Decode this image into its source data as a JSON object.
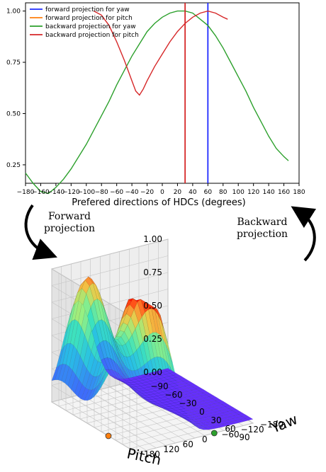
{
  "chart_data": [
    {
      "type": "line",
      "title": "",
      "xlabel": "Prefered directions of HDCs (degrees)",
      "ylabel": "",
      "xlim": [
        -180,
        180
      ],
      "ylim": [
        0.16,
        1.04
      ],
      "x_ticks": [
        -180,
        -160,
        -140,
        -120,
        -100,
        -80,
        -60,
        -40,
        -20,
        0,
        20,
        40,
        60,
        80,
        100,
        120,
        140,
        160,
        180
      ],
      "y_ticks": [
        0.25,
        0.5,
        0.75,
        1.0
      ],
      "y_tick_labels": [
        "0.25",
        "0.50",
        "0.75",
        "1.00"
      ],
      "grid": false,
      "legend_position": "top-left",
      "series": [
        {
          "name": "forward projection for yaw",
          "color": "#1f2bff",
          "style": "vertical",
          "x": 60,
          "y": [
            0.16,
            1.04
          ]
        },
        {
          "name": "forward projection for pitch",
          "color": "#ff7f0e",
          "style": "line",
          "x": [],
          "y": []
        },
        {
          "name": "backward projection for yaw",
          "color": "#2ca02c",
          "style": "line",
          "x": [
            -180,
            -170,
            -160,
            -150,
            -140,
            -130,
            -120,
            -110,
            -100,
            -90,
            -80,
            -70,
            -60,
            -50,
            -40,
            -30,
            -20,
            -10,
            0,
            10,
            20,
            30,
            40,
            50,
            60,
            70,
            80,
            90,
            100,
            110,
            120,
            130,
            140,
            150,
            160,
            166
          ],
          "y": [
            0.21,
            0.16,
            0.12,
            0.11,
            0.14,
            0.18,
            0.23,
            0.29,
            0.35,
            0.42,
            0.49,
            0.56,
            0.64,
            0.71,
            0.78,
            0.84,
            0.9,
            0.94,
            0.97,
            0.99,
            1.0,
            1.0,
            0.99,
            0.96,
            0.93,
            0.88,
            0.82,
            0.75,
            0.68,
            0.61,
            0.53,
            0.46,
            0.39,
            0.33,
            0.29,
            0.27
          ]
        },
        {
          "name": "backward projection for pitch",
          "color": "#d62728",
          "style": "line",
          "x": [
            -90,
            -80,
            -70,
            -60,
            -50,
            -40,
            -35,
            -30,
            -25,
            -20,
            -10,
            0,
            10,
            20,
            30,
            40,
            50,
            60,
            70,
            80,
            86
          ],
          "y": [
            1.0,
            0.98,
            0.93,
            0.85,
            0.76,
            0.66,
            0.61,
            0.59,
            0.62,
            0.66,
            0.73,
            0.79,
            0.85,
            0.9,
            0.94,
            0.97,
            0.99,
            1.0,
            0.99,
            0.97,
            0.96
          ]
        },
        {
          "name": "",
          "color": "#d62728",
          "style": "vertical",
          "x": 30,
          "y": [
            0.16,
            1.04
          ]
        }
      ]
    },
    {
      "type": "surface3d",
      "title": "",
      "xlabel": "Pitch",
      "ylabel": "Yaw",
      "zlabel": "",
      "xlim": [
        -90,
        90
      ],
      "ylim": [
        -180,
        180
      ],
      "zlim": [
        0,
        1
      ],
      "x_tick_labels": [
        "−90",
        "−60",
        "−30",
        "0",
        "30",
        "60",
        "90"
      ],
      "y_tick_labels": [
        "−180",
        "−120",
        "−60",
        "0",
        "60",
        "120",
        "180"
      ],
      "z_tick_labels": [
        "0.00",
        "0.25",
        "0.50",
        "0.75",
        "1.00"
      ],
      "colormap": "rainbow",
      "markers": [
        {
          "label": "",
          "color": "#ff7f0e",
          "pitch": 30,
          "yaw": 180
        },
        {
          "label": "",
          "color": "#2ca02c",
          "pitch": 90,
          "yaw": -60
        }
      ]
    }
  ],
  "annotations": {
    "forward_line1": "Forward",
    "forward_line2": "projection",
    "backward_line1": "Backward",
    "backward_line2": "projection"
  }
}
